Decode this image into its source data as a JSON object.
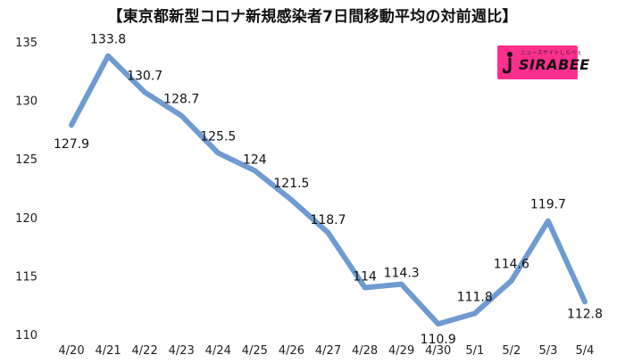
{
  "title": "【東京都新型コロナ新規感染者7日間移動平均の対前週比】",
  "logo": {
    "text": "SIRABEE",
    "subtext": "ニュースサイトしらべぇ"
  },
  "colors": {
    "line": "#6f9bd1",
    "logo_bg": "#ff2f8e"
  },
  "chart_data": {
    "type": "line",
    "title": "【東京都新型コロナ新規感染者7日間移動平均の対前週比】",
    "xlabel": "",
    "ylabel": "",
    "categories": [
      "4/20",
      "4/21",
      "4/22",
      "4/23",
      "4/24",
      "4/25",
      "4/26",
      "4/27",
      "4/28",
      "4/29",
      "4/30",
      "5/1",
      "5/2",
      "5/3",
      "5/4"
    ],
    "values": [
      127.9,
      133.8,
      130.7,
      128.7,
      125.5,
      124,
      121.5,
      118.7,
      114,
      114.3,
      110.9,
      111.8,
      114.6,
      119.7,
      112.8
    ],
    "value_labels": [
      "127.9",
      "133.8",
      "130.7",
      "128.7",
      "125.5",
      "124",
      "121.5",
      "118.7",
      "114",
      "114.3",
      "110.9",
      "111.8",
      "114.6",
      "119.7",
      "112.8"
    ],
    "ylim": [
      110,
      135
    ],
    "yticks": [
      110,
      115,
      120,
      125,
      130,
      135
    ],
    "grid": false,
    "legend": "none"
  }
}
